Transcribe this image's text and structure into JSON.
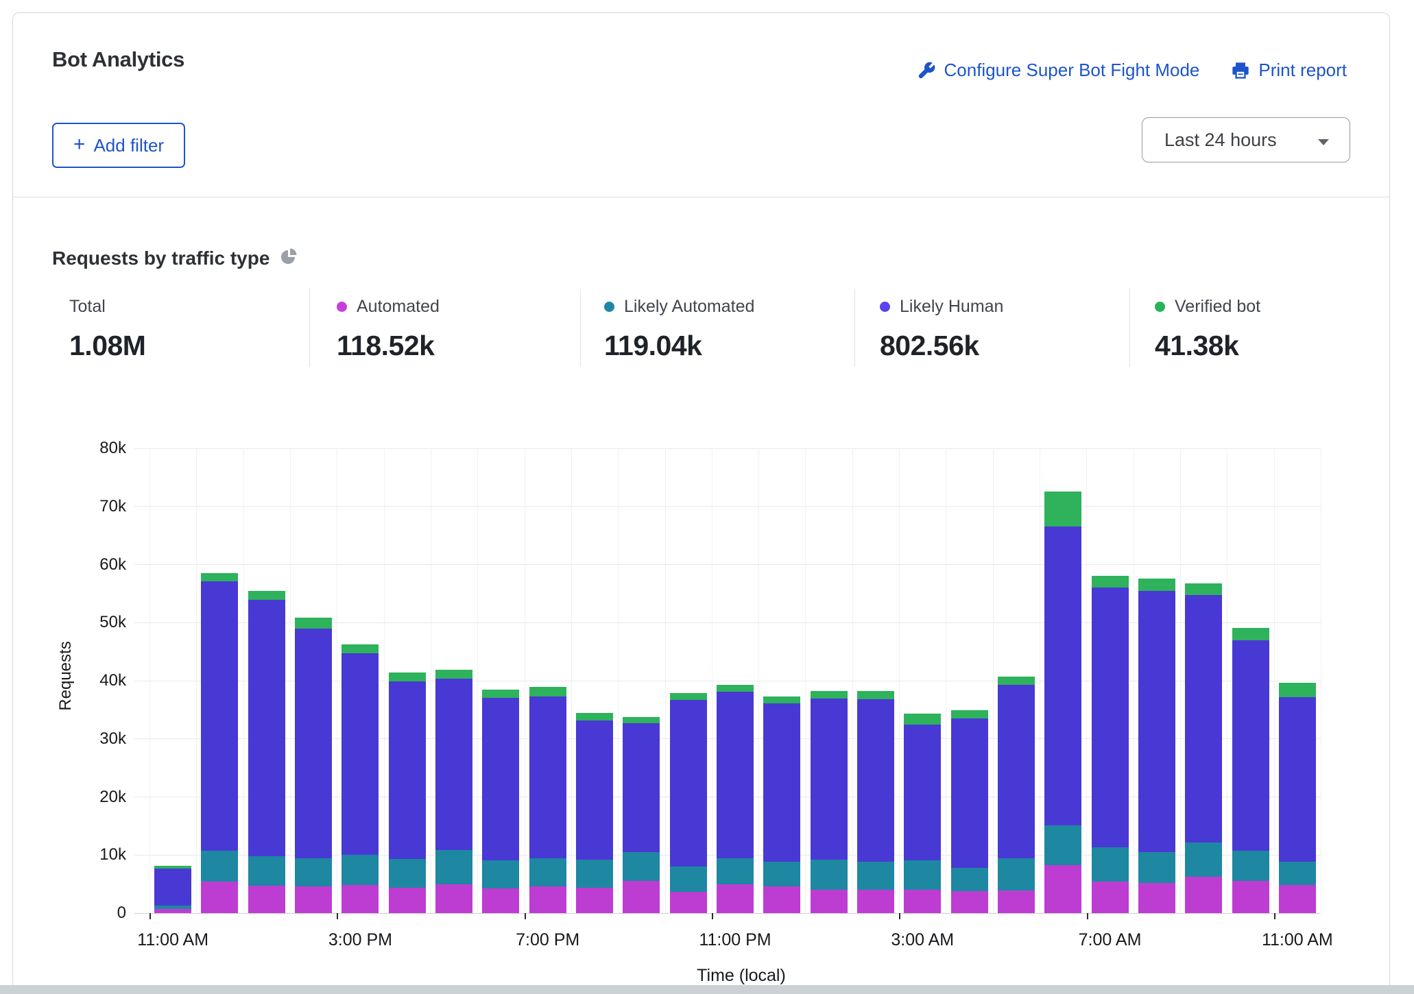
{
  "header": {
    "title": "Bot Analytics",
    "configure_link": "Configure Super Bot Fight Mode",
    "print_link": "Print report",
    "add_filter": {
      "icon": "+",
      "label": "Add filter"
    },
    "time_range": "Last 24 hours"
  },
  "icons": {
    "configure": "wrench-icon",
    "print": "printer-icon",
    "section": "pie-chart-icon",
    "select": "chevron-down-icon"
  },
  "section": {
    "title": "Requests by traffic type"
  },
  "stats": [
    {
      "label": "Total",
      "value": "1.08M",
      "dot": null
    },
    {
      "label": "Automated",
      "value": "118.52k",
      "dot": "#c73ede"
    },
    {
      "label": "Likely Automated",
      "value": "119.04k",
      "dot": "#1f87a3"
    },
    {
      "label": "Likely Human",
      "value": "802.56k",
      "dot": "#5a43ee"
    },
    {
      "label": "Verified bot",
      "value": "41.38k",
      "dot": "#27b25b"
    }
  ],
  "chart_data": {
    "type": "bar",
    "stacked": true,
    "title": "Requests by traffic type",
    "xlabel": "Time (local)",
    "ylabel": "Requests",
    "ylim": [
      0,
      80000
    ],
    "grid": true,
    "y_ticks": [
      "0",
      "10k",
      "20k",
      "30k",
      "40k",
      "50k",
      "60k",
      "70k",
      "80k"
    ],
    "x_ticks": [
      {
        "slot": 0,
        "label": "11:00 AM"
      },
      {
        "slot": 4,
        "label": "3:00 PM"
      },
      {
        "slot": 8,
        "label": "7:00 PM"
      },
      {
        "slot": 12,
        "label": "11:00 PM"
      },
      {
        "slot": 16,
        "label": "3:00 AM"
      },
      {
        "slot": 20,
        "label": "7:00 AM"
      },
      {
        "slot": 24,
        "label": "11:00 AM"
      }
    ],
    "series": [
      {
        "name": "Automated",
        "color": "#bd3dd3",
        "values": [
          700,
          5400,
          4700,
          4600,
          4800,
          4400,
          4900,
          4200,
          4600,
          4400,
          5500,
          3700,
          4900,
          4600,
          4050,
          4000,
          4000,
          3800,
          3900,
          8300,
          5400,
          5200,
          6200,
          5600,
          4800
        ]
      },
      {
        "name": "Likely Automated",
        "color": "#1e87a2",
        "values": [
          600,
          5300,
          5100,
          4900,
          5200,
          4900,
          5900,
          4900,
          4900,
          4800,
          5000,
          4300,
          4600,
          4200,
          5150,
          4800,
          5050,
          4000,
          5600,
          6850,
          5900,
          5300,
          6000,
          5100,
          4050
        ]
      },
      {
        "name": "Likely Human",
        "color": "#4839d4",
        "values": [
          6400,
          46400,
          44100,
          39500,
          34700,
          30600,
          29600,
          27900,
          27800,
          24000,
          22200,
          28700,
          28600,
          27250,
          27700,
          28000,
          23350,
          25700,
          29800,
          51450,
          44700,
          45000,
          42600,
          36300,
          28350
        ]
      },
      {
        "name": "Verified bot",
        "color": "#2eb25c",
        "values": [
          500,
          1400,
          1600,
          1900,
          1600,
          1500,
          1500,
          1500,
          1600,
          1300,
          1100,
          1200,
          1200,
          1250,
          1300,
          1400,
          1900,
          1400,
          1400,
          6000,
          2000,
          2100,
          1900,
          2100,
          2400
        ]
      }
    ]
  }
}
